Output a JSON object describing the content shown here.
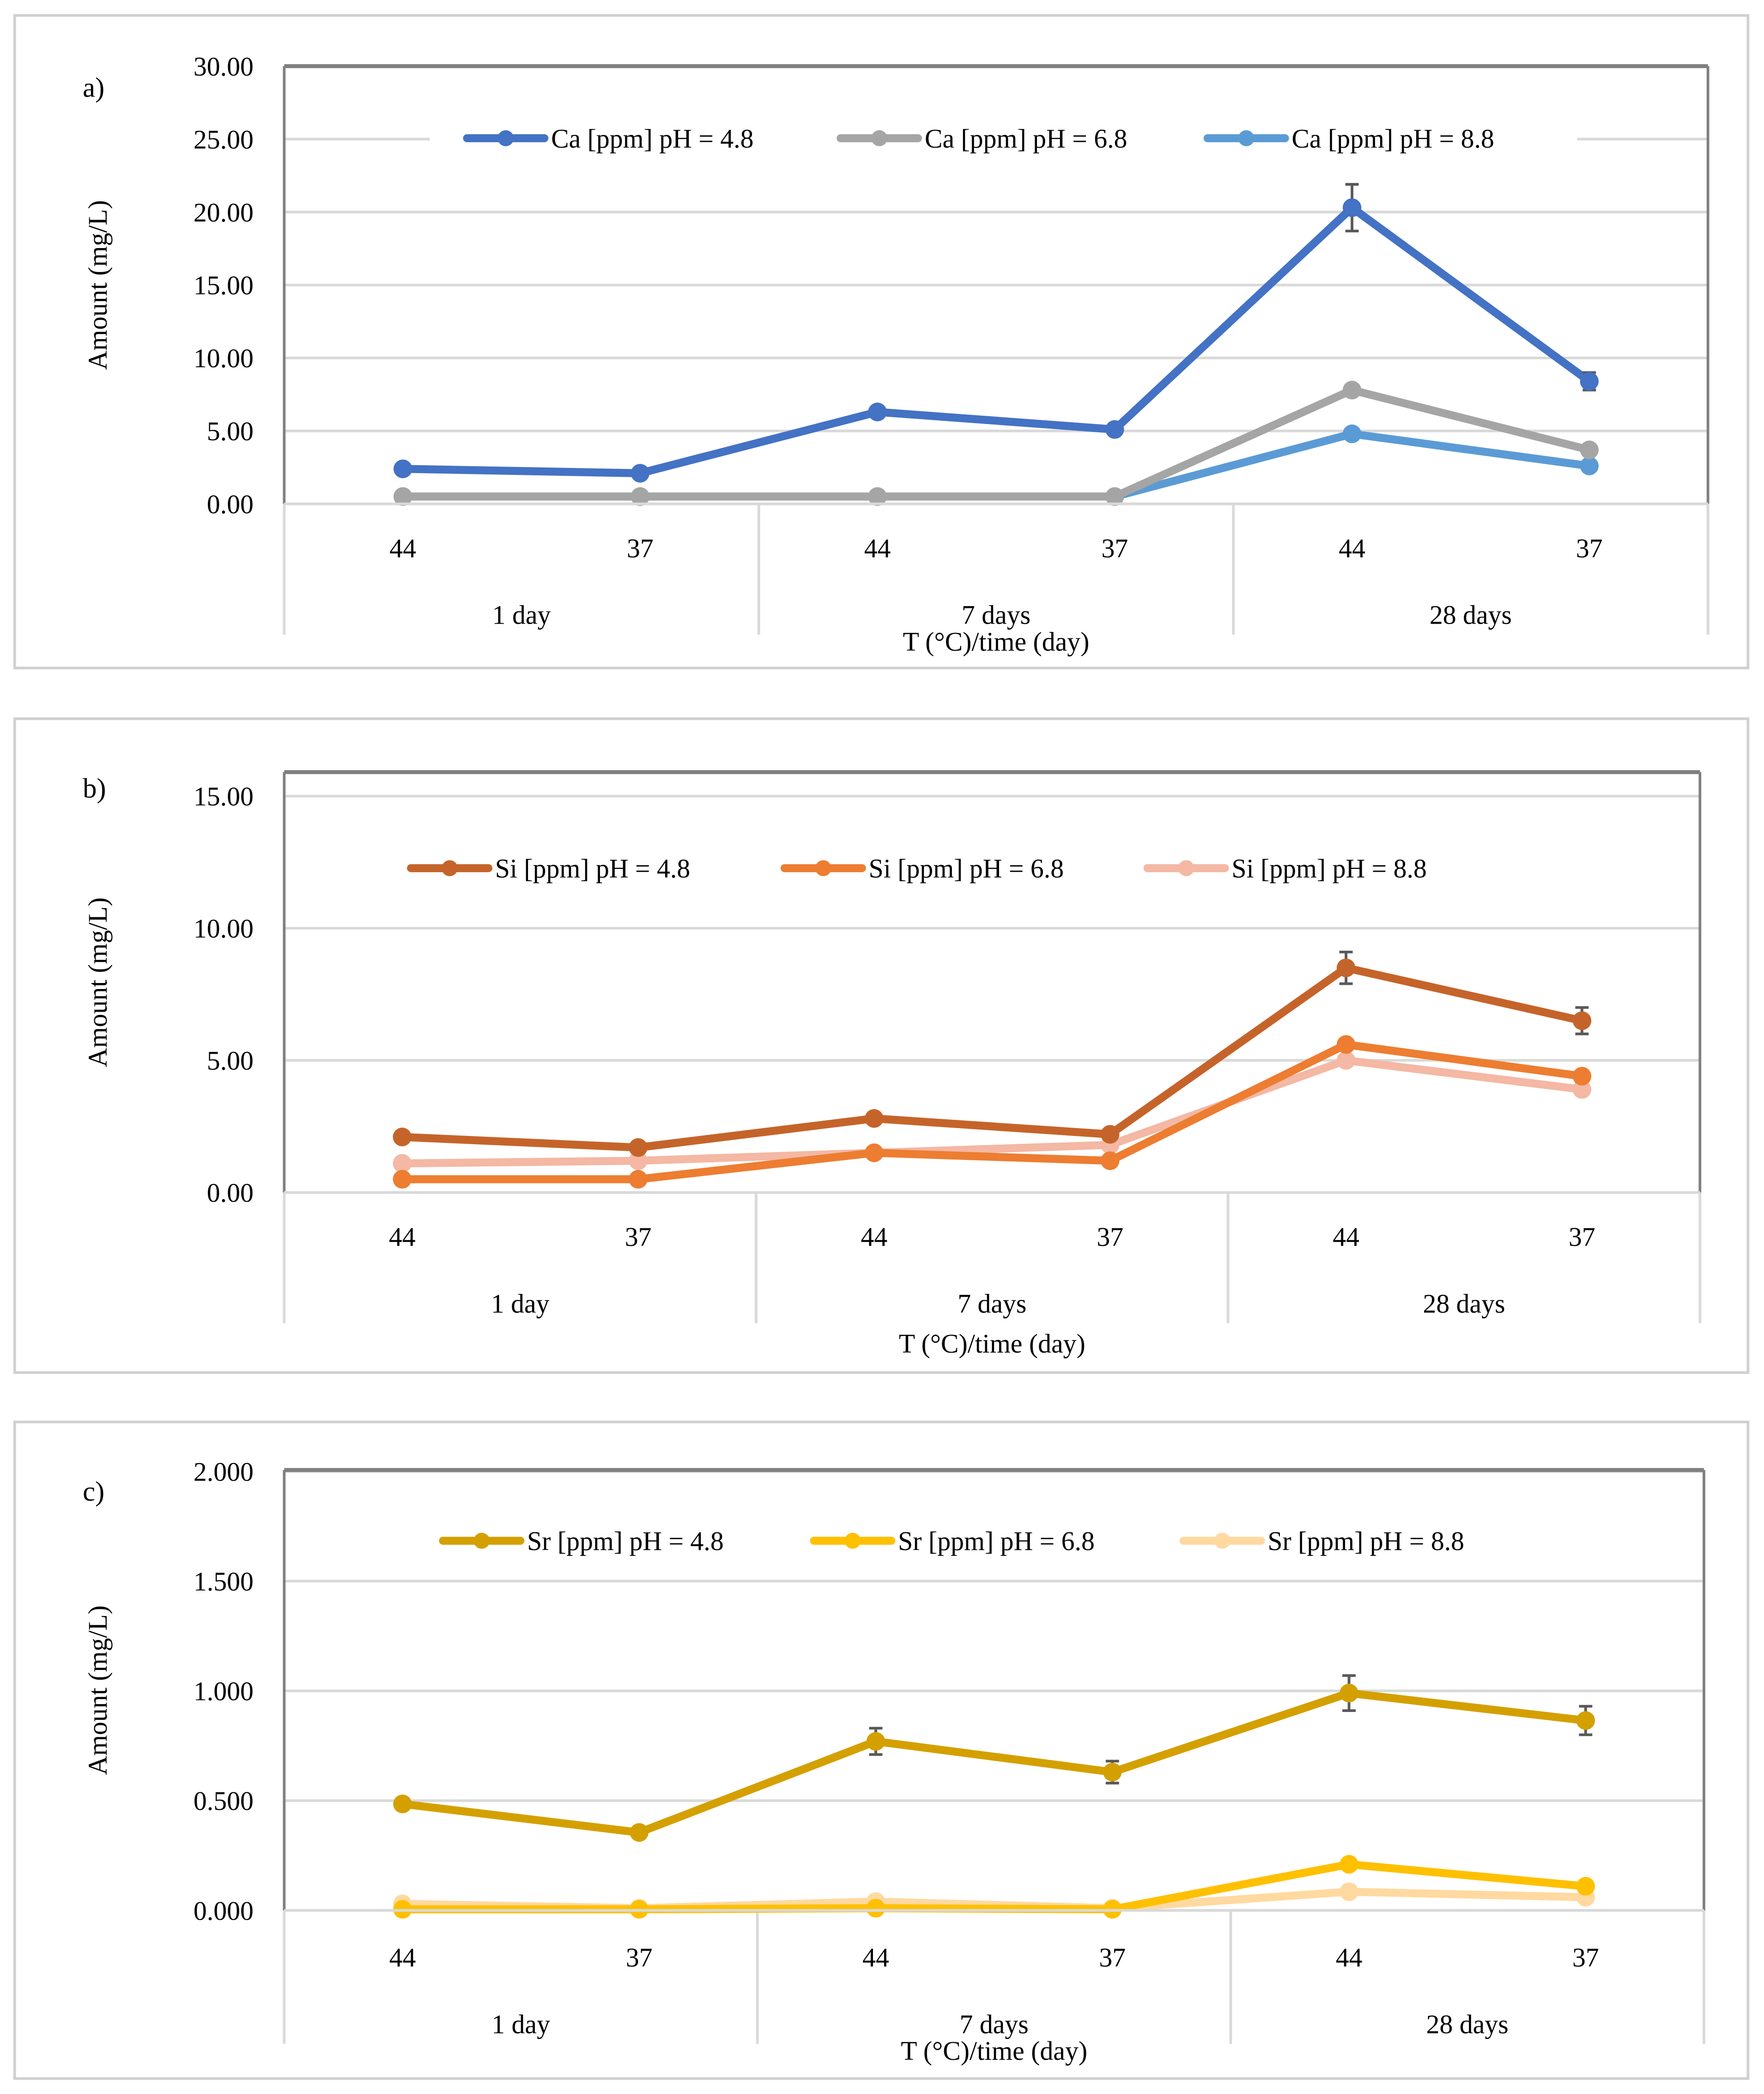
{
  "chart_data": [
    {
      "type": "line",
      "panel_label": "a)",
      "ylabel": "Amount (mg/L)",
      "xlabel": "T (°C)/time (day)",
      "x_ticks": [
        "44",
        "37",
        "44",
        "37",
        "44",
        "37"
      ],
      "groups": [
        "1 day",
        "7 days",
        "28 days"
      ],
      "ylim": [
        0,
        30
      ],
      "y_ticks": [
        0,
        5,
        10,
        15,
        20,
        25,
        30
      ],
      "y_tick_labels": [
        "0.00",
        "5.00",
        "10.00",
        "15.00",
        "20.00",
        "25.00",
        "30.00"
      ],
      "grid": true,
      "legend_position": "top",
      "series": [
        {
          "name": "Ca [ppm] pH = 4.8",
          "color": "#4472C4",
          "values": [
            2.4,
            2.1,
            6.3,
            5.1,
            20.3,
            8.4
          ],
          "errors": [
            0.1,
            0.1,
            0.2,
            0.1,
            1.6,
            0.6
          ]
        },
        {
          "name": "Ca [ppm] pH = 6.8",
          "color": "#A5A5A5",
          "values": [
            0.5,
            0.5,
            0.5,
            0.5,
            7.8,
            3.7
          ],
          "errors": [
            0,
            0,
            0,
            0,
            0,
            0
          ]
        },
        {
          "name": "Ca [ppm] pH = 8.8",
          "color": "#5B9BD5",
          "values": [
            0.5,
            0.5,
            0.5,
            0.5,
            4.8,
            2.6
          ],
          "errors": [
            0,
            0,
            0,
            0,
            0,
            0
          ]
        }
      ]
    },
    {
      "type": "line",
      "panel_label": "b)",
      "ylabel": "Amount (mg/L)",
      "xlabel": "T (°C)/time (day)",
      "x_ticks": [
        "44",
        "37",
        "44",
        "37",
        "44",
        "37"
      ],
      "groups": [
        "1 day",
        "7 days",
        "28 days"
      ],
      "ylim": [
        0,
        15
      ],
      "y_ticks": [
        0,
        5,
        10,
        15
      ],
      "y_tick_labels": [
        "0.00",
        "5.00",
        "10.00",
        "15.00"
      ],
      "grid": true,
      "legend_position": "top",
      "series": [
        {
          "name": "Si [ppm] pH = 4.8",
          "color": "#C5642A",
          "values": [
            2.1,
            1.7,
            2.8,
            2.2,
            8.5,
            6.5
          ],
          "errors": [
            0,
            0,
            0,
            0,
            0.6,
            0.5
          ]
        },
        {
          "name": "Si [ppm] pH = 6.8",
          "color": "#ED7D31",
          "values": [
            0.5,
            0.5,
            1.5,
            1.2,
            5.6,
            4.4
          ],
          "errors": [
            0,
            0,
            0,
            0,
            0,
            0
          ]
        },
        {
          "name": "Si [ppm] pH = 8.8",
          "color": "#F4B8A4",
          "values": [
            1.1,
            1.2,
            1.5,
            1.8,
            5.0,
            3.9
          ],
          "errors": [
            0,
            0,
            0,
            0,
            0,
            0
          ]
        }
      ]
    },
    {
      "type": "line",
      "panel_label": "c)",
      "ylabel": "Amount (mg/L)",
      "xlabel": "T (°C)/time (day)",
      "x_ticks": [
        "44",
        "37",
        "44",
        "37",
        "44",
        "37"
      ],
      "groups": [
        "1 day",
        "7 days",
        "28 days"
      ],
      "ylim": [
        0,
        2
      ],
      "y_ticks": [
        0,
        0.5,
        1,
        1.5,
        2
      ],
      "y_tick_labels": [
        "0.000",
        "0.500",
        "1.000",
        "1.500",
        "2.000"
      ],
      "grid": true,
      "legend_position": "top",
      "series": [
        {
          "name": "Sr [ppm] pH = 4.8",
          "color": "#D4A000",
          "values": [
            0.485,
            0.355,
            0.77,
            0.63,
            0.99,
            0.865
          ],
          "errors": [
            0.025,
            0.0,
            0.06,
            0.05,
            0.08,
            0.065
          ]
        },
        {
          "name": "Sr [ppm] pH = 6.8",
          "color": "#FFC000",
          "values": [
            0.005,
            0.005,
            0.01,
            0.005,
            0.21,
            0.11
          ],
          "errors": [
            0,
            0,
            0,
            0,
            0,
            0
          ]
        },
        {
          "name": "Sr [ppm] pH = 8.8",
          "color": "#FFD9A0",
          "values": [
            0.03,
            0.01,
            0.04,
            0.01,
            0.085,
            0.06
          ],
          "errors": [
            0,
            0,
            0,
            0,
            0,
            0
          ]
        }
      ]
    }
  ]
}
